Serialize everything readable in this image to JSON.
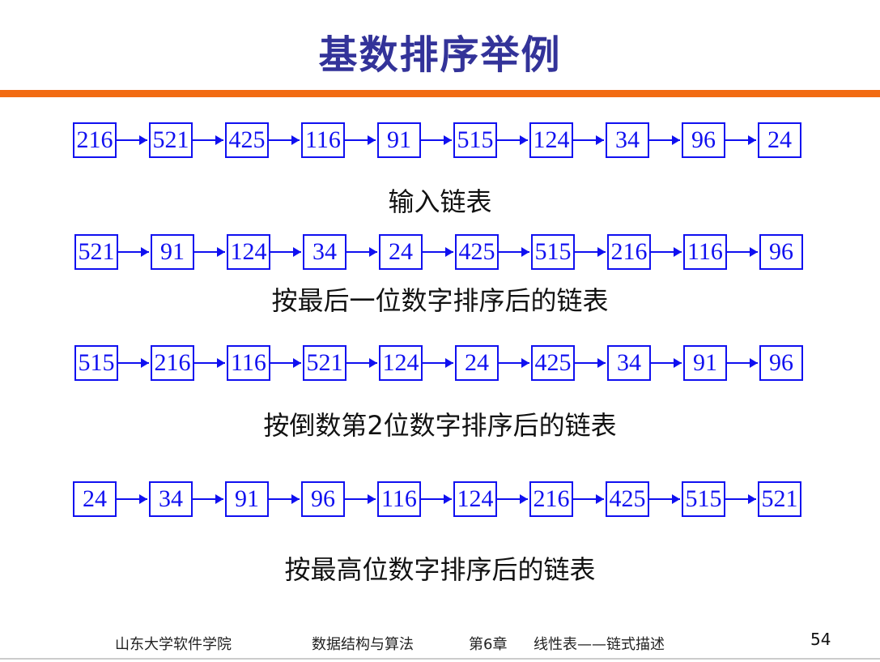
{
  "title": "基数排序举例",
  "rows": [
    {
      "values": [
        "216",
        "521",
        "425",
        "116",
        "91",
        "515",
        "124",
        "34",
        "96",
        "24"
      ],
      "caption": "输入链表"
    },
    {
      "values": [
        "521",
        "91",
        "124",
        "34",
        "24",
        "425",
        "515",
        "216",
        "116",
        "96"
      ],
      "caption": "按最后一位数字排序后的链表"
    },
    {
      "values": [
        "515",
        "216",
        "116",
        "521",
        "124",
        "24",
        "425",
        "34",
        "91",
        "96"
      ],
      "caption": "按倒数第2位数字排序后的链表"
    },
    {
      "values": [
        "24",
        "34",
        "91",
        "96",
        "116",
        "124",
        "216",
        "425",
        "515",
        "521"
      ],
      "caption": "按最高位数字排序后的链表"
    }
  ],
  "footer": {
    "school": "山东大学软件学院",
    "course": "数据结构与算法",
    "chapter": "第6章",
    "topic": "线性表——链式描述",
    "page": "54"
  },
  "colors": {
    "title": "#333399",
    "accent": "#f26b12",
    "node": "#1010f0"
  }
}
